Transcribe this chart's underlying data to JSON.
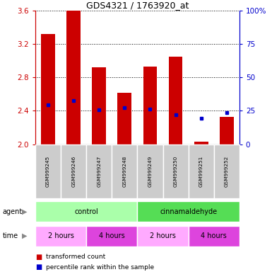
{
  "title": "GDS4321 / 1763920_at",
  "samples": [
    "GSM999245",
    "GSM999246",
    "GSM999247",
    "GSM999248",
    "GSM999249",
    "GSM999250",
    "GSM999251",
    "GSM999252"
  ],
  "bar_tops": [
    3.32,
    3.6,
    2.92,
    2.62,
    2.93,
    3.05,
    2.03,
    2.33
  ],
  "bar_bottoms": [
    2.0,
    2.0,
    2.0,
    2.0,
    2.0,
    2.0,
    2.0,
    2.0
  ],
  "percentile_values": [
    2.47,
    2.52,
    2.41,
    2.44,
    2.42,
    2.35,
    2.31,
    2.38
  ],
  "ylim_left": [
    2.0,
    3.6
  ],
  "ylim_right": [
    0,
    100
  ],
  "yticks_left": [
    2.0,
    2.4,
    2.8,
    3.2,
    3.6
  ],
  "yticks_right": [
    0,
    25,
    50,
    75,
    100
  ],
  "ytick_labels_right": [
    "0",
    "25",
    "50",
    "75",
    "100%"
  ],
  "bar_color": "#cc0000",
  "dot_color": "#0000cc",
  "agent_groups": [
    {
      "label": "control",
      "start": 0,
      "end": 4,
      "color": "#aaffaa"
    },
    {
      "label": "cinnamaldehyde",
      "start": 4,
      "end": 8,
      "color": "#55dd55"
    }
  ],
  "time_groups": [
    {
      "label": "2 hours",
      "start": 0,
      "end": 2,
      "color": "#ffaaff"
    },
    {
      "label": "4 hours",
      "start": 2,
      "end": 4,
      "color": "#dd44dd"
    },
    {
      "label": "2 hours",
      "start": 4,
      "end": 6,
      "color": "#ffaaff"
    },
    {
      "label": "4 hours",
      "start": 6,
      "end": 8,
      "color": "#dd44dd"
    }
  ],
  "left_tick_color": "#cc0000",
  "right_tick_color": "#0000cc",
  "sample_bg_color": "#cccccc",
  "legend_red_label": "transformed count",
  "legend_blue_label": "percentile rank within the sample",
  "n_samples": 8
}
